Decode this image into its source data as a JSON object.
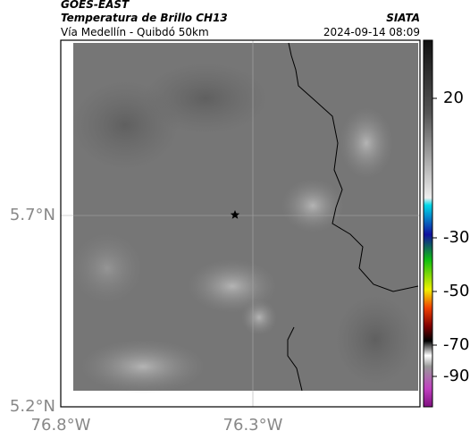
{
  "header": {
    "source": "GOES-EAST",
    "product": "Temperatura de Brillo CH13",
    "agency": "SIATA",
    "region": "Vía Medellín - Quibdó 50km",
    "datetime": "2024-09-14 08:09"
  },
  "map": {
    "lat_labels": [
      "5.7°N",
      "5.2°N"
    ],
    "lon_labels": [
      "76.8°W",
      "76.3°W"
    ]
  },
  "colorbar": {
    "ticks": [
      20,
      -30,
      -50,
      -70,
      -90
    ]
  }
}
